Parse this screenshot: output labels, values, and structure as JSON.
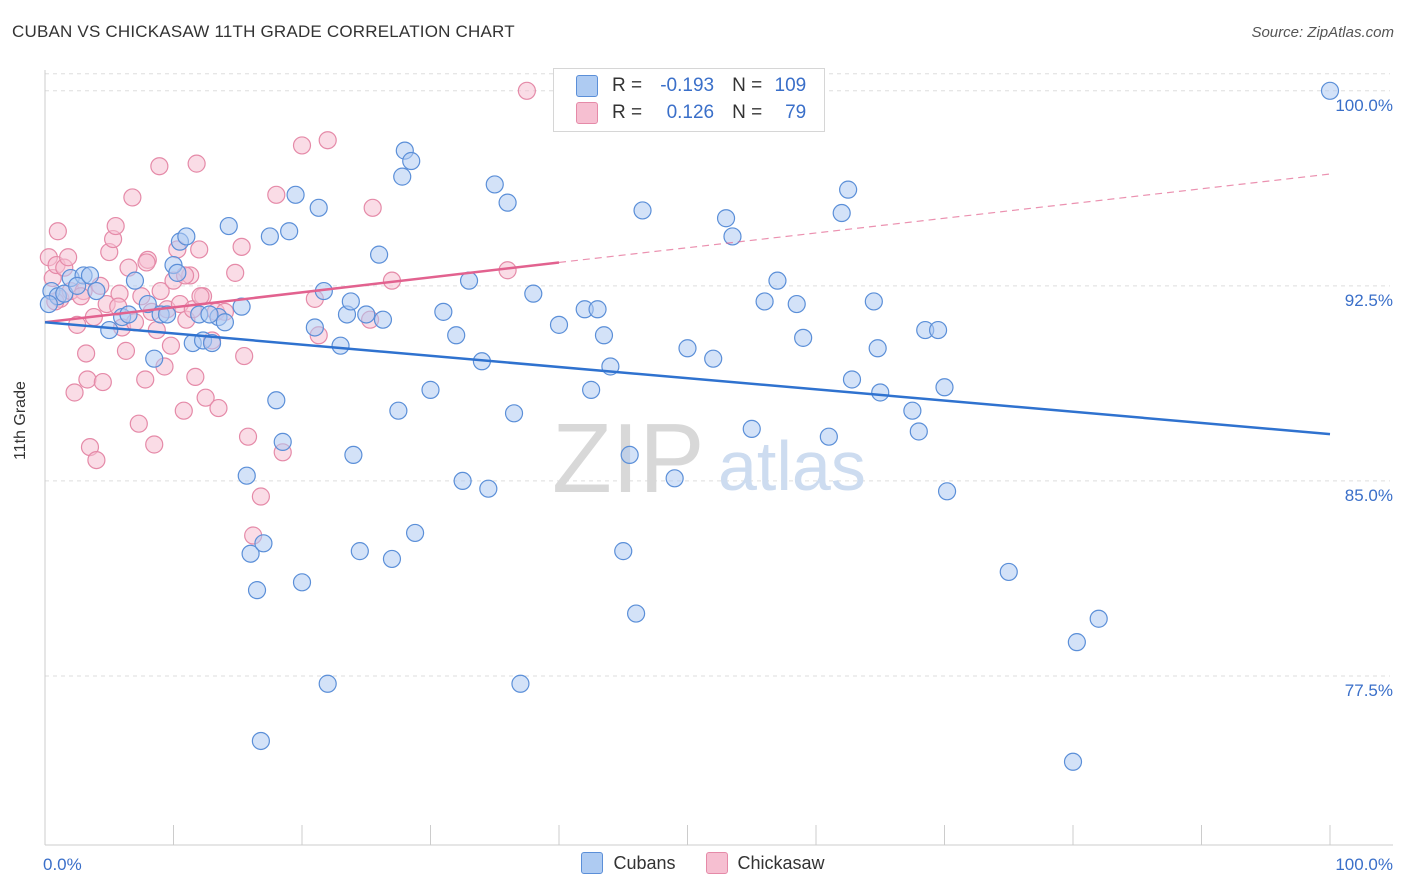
{
  "title": "CUBAN VS CHICKASAW 11TH GRADE CORRELATION CHART",
  "source": "Source: ZipAtlas.com",
  "colors": {
    "cubans_fill": "#aecbf2",
    "cubans_stroke": "#5b8fd8",
    "cubans_line": "#2f72cf",
    "chick_fill": "#f6bfd1",
    "chick_stroke": "#e58aa8",
    "chick_line": "#e2628f",
    "value_text": "#3a6fc9",
    "grid": "#dddddd"
  },
  "legend": {
    "r_label": "R =",
    "n_label": "N =",
    "cubans_r": "-0.193",
    "cubans_n": "109",
    "chick_r": "0.126",
    "chick_n": "79"
  },
  "bottom_legend": {
    "cubans": "Cubans",
    "chick": "Chickasaw"
  },
  "chart_data": {
    "type": "scatter",
    "title": "CUBAN VS CHICKASAW 11TH GRADE CORRELATION CHART",
    "xlabel": "",
    "ylabel": "11th Grade",
    "xlim": [
      0,
      100
    ],
    "ylim": [
      71.0,
      100.8
    ],
    "x_tick_labels": [
      "0.0%",
      "100.0%"
    ],
    "y_ticks": [
      77.5,
      85.0,
      92.5,
      100.0
    ],
    "y_tick_labels": [
      "77.5%",
      "85.0%",
      "92.5%",
      "100.0%"
    ],
    "grid": true,
    "legend_position": "top-center",
    "series": [
      {
        "name": "Cubans",
        "trend": {
          "x": [
            0,
            100
          ],
          "y": [
            91.1,
            86.8
          ]
        },
        "points": [
          [
            0.5,
            92.3
          ],
          [
            1.0,
            92.1
          ],
          [
            1.5,
            92.2
          ],
          [
            2.0,
            92.8
          ],
          [
            3.0,
            92.9
          ],
          [
            4.0,
            92.3
          ],
          [
            5.0,
            90.8
          ],
          [
            6.0,
            91.3
          ],
          [
            7.0,
            92.7
          ],
          [
            8.0,
            91.8
          ],
          [
            8.5,
            89.7
          ],
          [
            9.0,
            91.4
          ],
          [
            10.0,
            93.3
          ],
          [
            10.3,
            93.0
          ],
          [
            10.5,
            94.2
          ],
          [
            11.0,
            94.4
          ],
          [
            11.5,
            90.3
          ],
          [
            12.0,
            91.4
          ],
          [
            12.3,
            90.4
          ],
          [
            13.0,
            90.3
          ],
          [
            13.5,
            91.3
          ],
          [
            14.0,
            91.1
          ],
          [
            14.3,
            94.8
          ],
          [
            15.3,
            91.7
          ],
          [
            15.7,
            85.2
          ],
          [
            16.0,
            82.2
          ],
          [
            16.5,
            80.8
          ],
          [
            16.8,
            75.0
          ],
          [
            17.0,
            82.6
          ],
          [
            17.5,
            94.4
          ],
          [
            18.0,
            88.1
          ],
          [
            18.5,
            86.5
          ],
          [
            19.0,
            94.6
          ],
          [
            19.5,
            96.0
          ],
          [
            20.0,
            81.1
          ],
          [
            21.0,
            90.9
          ],
          [
            21.3,
            95.5
          ],
          [
            21.7,
            92.3
          ],
          [
            22.0,
            77.2
          ],
          [
            23.0,
            90.2
          ],
          [
            23.5,
            91.4
          ],
          [
            23.8,
            91.9
          ],
          [
            24.0,
            86.0
          ],
          [
            24.5,
            82.3
          ],
          [
            25.0,
            91.4
          ],
          [
            26.0,
            93.7
          ],
          [
            26.3,
            91.2
          ],
          [
            27.0,
            82.0
          ],
          [
            27.5,
            87.7
          ],
          [
            27.8,
            96.7
          ],
          [
            28.0,
            97.7
          ],
          [
            28.5,
            97.3
          ],
          [
            28.8,
            83.0
          ],
          [
            30.0,
            88.5
          ],
          [
            31.0,
            91.5
          ],
          [
            32.0,
            90.6
          ],
          [
            32.5,
            85.0
          ],
          [
            33.0,
            92.7
          ],
          [
            34.0,
            89.6
          ],
          [
            34.5,
            84.7
          ],
          [
            35.0,
            96.4
          ],
          [
            36.0,
            95.7
          ],
          [
            36.5,
            87.6
          ],
          [
            37.0,
            77.2
          ],
          [
            38.0,
            92.2
          ],
          [
            40.0,
            91.0
          ],
          [
            42.0,
            91.6
          ],
          [
            42.5,
            88.5
          ],
          [
            43.0,
            91.6
          ],
          [
            43.5,
            90.6
          ],
          [
            44.0,
            89.4
          ],
          [
            45.0,
            82.3
          ],
          [
            45.5,
            86.0
          ],
          [
            46.0,
            79.9
          ],
          [
            46.5,
            95.4
          ],
          [
            49.0,
            85.1
          ],
          [
            50.0,
            90.1
          ],
          [
            52.0,
            89.7
          ],
          [
            53.0,
            95.1
          ],
          [
            53.5,
            94.4
          ],
          [
            55.0,
            87.0
          ],
          [
            56.0,
            91.9
          ],
          [
            57.0,
            92.7
          ],
          [
            58.5,
            91.8
          ],
          [
            59.0,
            90.5
          ],
          [
            61.0,
            86.7
          ],
          [
            62.0,
            95.3
          ],
          [
            62.5,
            96.2
          ],
          [
            62.8,
            88.9
          ],
          [
            64.5,
            91.9
          ],
          [
            64.8,
            90.1
          ],
          [
            65.0,
            88.4
          ],
          [
            67.5,
            87.7
          ],
          [
            68.5,
            90.8
          ],
          [
            68.0,
            86.9
          ],
          [
            69.5,
            90.8
          ],
          [
            70.0,
            88.6
          ],
          [
            70.2,
            84.6
          ],
          [
            75.0,
            81.5
          ],
          [
            80.0,
            74.2
          ],
          [
            80.3,
            78.8
          ],
          [
            82.0,
            79.7
          ],
          [
            100.0,
            100.0
          ],
          [
            0.3,
            91.8
          ],
          [
            2.5,
            92.5
          ],
          [
            3.5,
            92.9
          ],
          [
            6.5,
            91.4
          ],
          [
            9.5,
            91.4
          ],
          [
            12.8,
            91.4
          ]
        ]
      },
      {
        "name": "Chickasaw",
        "trend": {
          "x": [
            0,
            40
          ],
          "y": [
            91.1,
            93.4
          ]
        },
        "trend_extension": {
          "x": [
            40,
            100
          ],
          "y": [
            93.4,
            96.8
          ]
        },
        "points": [
          [
            0.3,
            93.6
          ],
          [
            0.6,
            92.8
          ],
          [
            0.9,
            93.3
          ],
          [
            1.0,
            94.6
          ],
          [
            1.2,
            92.0
          ],
          [
            1.5,
            93.2
          ],
          [
            1.8,
            93.6
          ],
          [
            2.0,
            92.3
          ],
          [
            2.3,
            88.4
          ],
          [
            2.5,
            91.0
          ],
          [
            3.0,
            92.3
          ],
          [
            3.2,
            89.9
          ],
          [
            3.3,
            88.9
          ],
          [
            3.5,
            86.3
          ],
          [
            3.8,
            91.3
          ],
          [
            4.0,
            85.8
          ],
          [
            4.3,
            92.5
          ],
          [
            4.5,
            88.8
          ],
          [
            4.8,
            91.8
          ],
          [
            5.0,
            93.8
          ],
          [
            5.3,
            94.3
          ],
          [
            5.5,
            94.8
          ],
          [
            5.8,
            92.2
          ],
          [
            6.0,
            90.9
          ],
          [
            6.3,
            90.0
          ],
          [
            6.5,
            93.2
          ],
          [
            6.8,
            95.9
          ],
          [
            7.0,
            91.1
          ],
          [
            7.3,
            87.2
          ],
          [
            7.5,
            92.1
          ],
          [
            7.8,
            88.9
          ],
          [
            8.0,
            93.5
          ],
          [
            8.3,
            91.5
          ],
          [
            8.5,
            86.4
          ],
          [
            8.7,
            90.8
          ],
          [
            8.9,
            97.1
          ],
          [
            9.0,
            92.3
          ],
          [
            9.3,
            89.4
          ],
          [
            9.5,
            91.6
          ],
          [
            9.8,
            90.2
          ],
          [
            10.0,
            92.7
          ],
          [
            10.3,
            93.9
          ],
          [
            10.5,
            91.8
          ],
          [
            10.8,
            87.7
          ],
          [
            11.0,
            91.2
          ],
          [
            11.3,
            92.9
          ],
          [
            11.5,
            91.6
          ],
          [
            11.7,
            89.0
          ],
          [
            11.8,
            97.2
          ],
          [
            12.0,
            93.9
          ],
          [
            12.3,
            92.1
          ],
          [
            12.5,
            88.2
          ],
          [
            13.0,
            90.4
          ],
          [
            13.3,
            91.5
          ],
          [
            13.5,
            87.8
          ],
          [
            14.0,
            91.5
          ],
          [
            14.8,
            93.0
          ],
          [
            15.3,
            94.0
          ],
          [
            15.5,
            89.8
          ],
          [
            15.8,
            86.7
          ],
          [
            16.2,
            82.9
          ],
          [
            16.8,
            84.4
          ],
          [
            18.0,
            96.0
          ],
          [
            18.5,
            86.1
          ],
          [
            20.0,
            97.9
          ],
          [
            21.0,
            92.0
          ],
          [
            21.3,
            90.6
          ],
          [
            22.0,
            98.1
          ],
          [
            25.3,
            91.2
          ],
          [
            25.5,
            95.5
          ],
          [
            27.0,
            92.7
          ],
          [
            36.0,
            93.1
          ],
          [
            37.5,
            100.0
          ],
          [
            0.8,
            91.9
          ],
          [
            2.8,
            92.1
          ],
          [
            5.7,
            91.7
          ],
          [
            7.9,
            93.4
          ],
          [
            10.9,
            92.9
          ],
          [
            12.1,
            92.1
          ]
        ]
      }
    ]
  }
}
